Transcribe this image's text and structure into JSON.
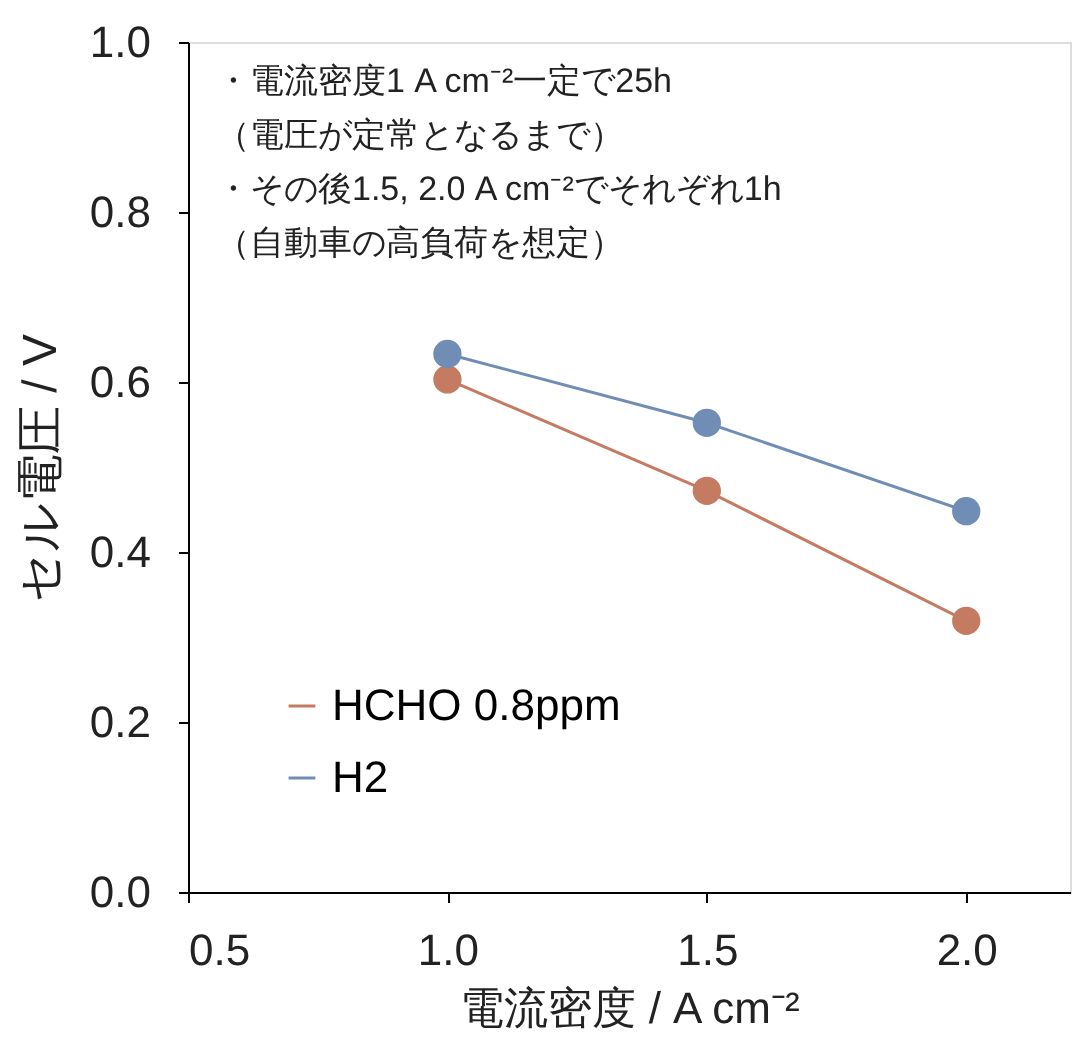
{
  "chart_data": {
    "type": "line",
    "xlabel": "電流密度 / A cm⁻²",
    "ylabel": "セル電圧 / V",
    "x": [
      1.0,
      1.5,
      2.0
    ],
    "series": [
      {
        "name": "HCHO 0.8ppm",
        "color": "#c57b62",
        "values": [
          0.603,
          0.472,
          0.319
        ]
      },
      {
        "name": "H2",
        "color": "#6f8db5",
        "values": [
          0.633,
          0.552,
          0.448
        ]
      }
    ],
    "xlim": [
      0.5,
      2.2
    ],
    "xticks": [
      0.5,
      {
        "value": 1,
        "label": "1.0"
      },
      1.5,
      {
        "value": 2,
        "label": "2.0"
      }
    ],
    "ylim": [
      0,
      1
    ],
    "yticks": [
      {
        "value": 0,
        "label": "0.0"
      },
      0.2,
      0.4,
      0.6,
      0.8,
      {
        "value": 1,
        "label": "1.0"
      }
    ],
    "annotations": [
      "・電流密度1 A cm⁻²一定で25h",
      "（電圧が定常となるまで）",
      "・その後1.5, 2.0 A cm⁻²でそれぞれ1h",
      "（自動車の高負荷を想定）"
    ],
    "legend": "bottom left",
    "marker": "circle",
    "line_style": "solid",
    "grid": false
  }
}
